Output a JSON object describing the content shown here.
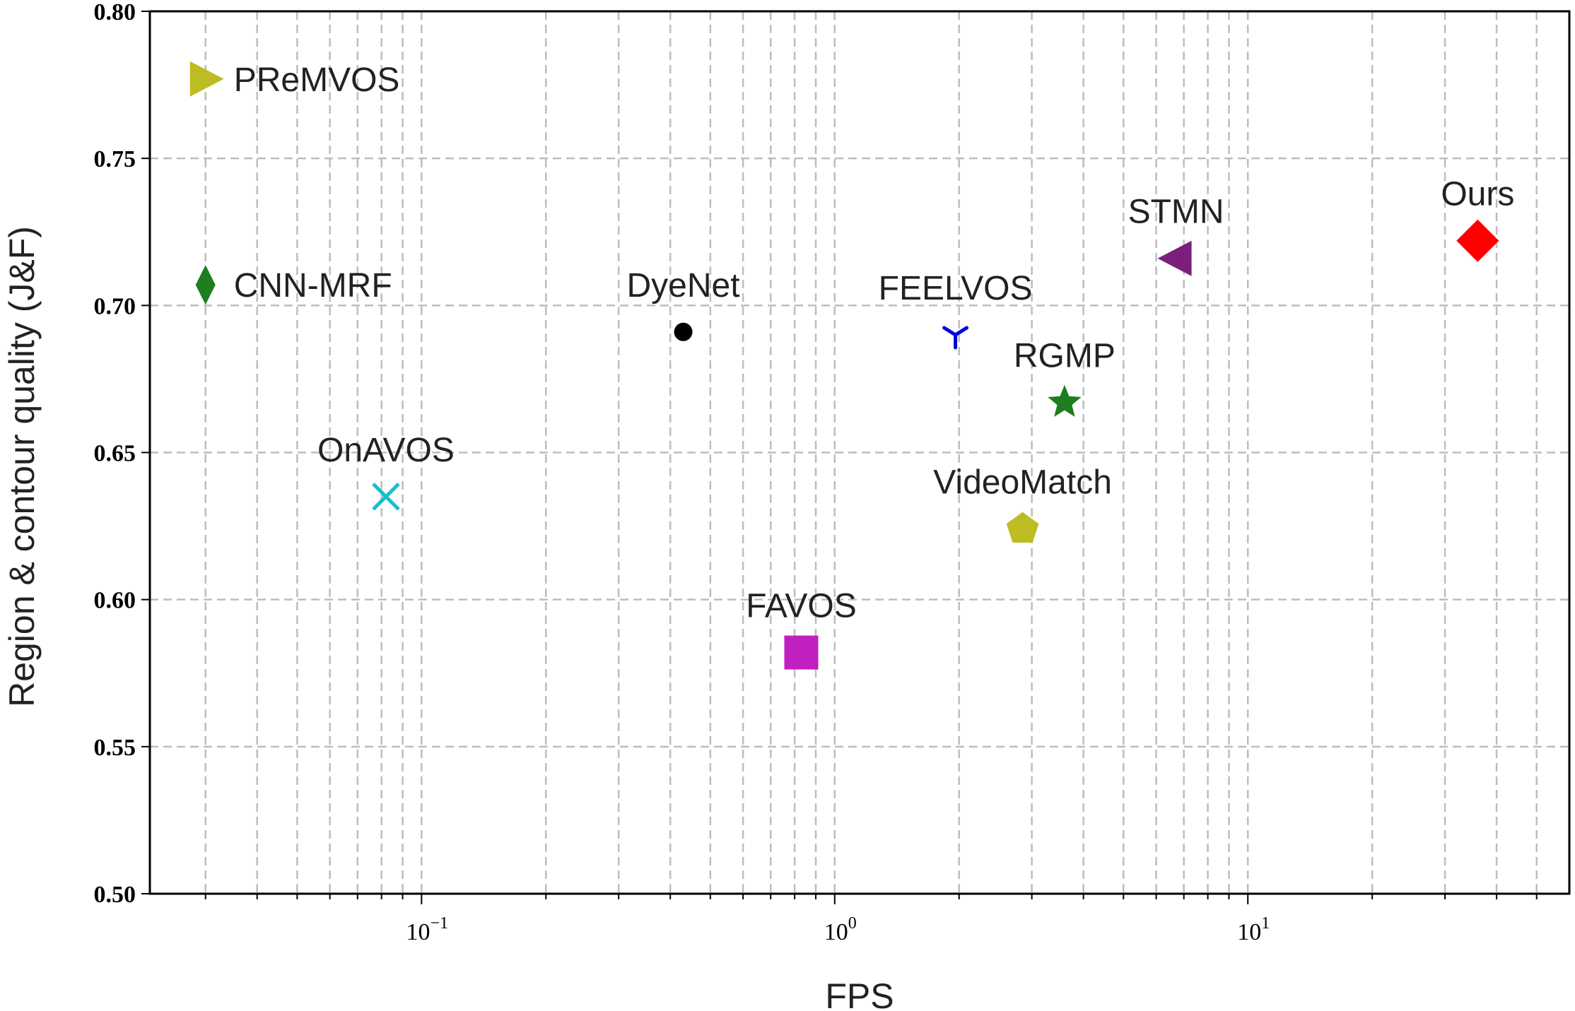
{
  "chart_data": {
    "type": "scatter",
    "title": "",
    "xlabel": "FPS",
    "ylabel": "Region & contour quality (J&F)",
    "xscale": "log",
    "xlim": [
      0.022,
      60
    ],
    "ylim": [
      0.5,
      0.8
    ],
    "grid": true,
    "y_ticks": [
      0.5,
      0.55,
      0.6,
      0.65,
      0.7,
      0.75,
      0.8
    ],
    "y_tick_labels": [
      "0.50",
      "0.55",
      "0.60",
      "0.65",
      "0.70",
      "0.75",
      "0.80"
    ],
    "x_major_ticks": [
      {
        "value": 0.1,
        "base": "10",
        "exp": "−1"
      },
      {
        "value": 1,
        "base": "10",
        "exp": "0"
      },
      {
        "value": 10,
        "base": "10",
        "exp": "1"
      }
    ],
    "x_minor_ticks": [
      0.03,
      0.04,
      0.05,
      0.06,
      0.07,
      0.08,
      0.09,
      0.2,
      0.3,
      0.4,
      0.5,
      0.6,
      0.7,
      0.8,
      0.9,
      2,
      3,
      4,
      5,
      6,
      7,
      8,
      9,
      20,
      30,
      40,
      50
    ],
    "points": [
      {
        "label": "PReMVOS",
        "x": 0.03,
        "y": 0.777,
        "marker": "triangle-right",
        "color": "#bcbd22",
        "label_pos": "right"
      },
      {
        "label": "CNN-MRF",
        "x": 0.03,
        "y": 0.707,
        "marker": "thin-diamond",
        "color": "#1e7d1e",
        "label_pos": "right"
      },
      {
        "label": "OnAVOS",
        "x": 0.082,
        "y": 0.635,
        "marker": "x",
        "color": "#17becf",
        "label_pos": "above"
      },
      {
        "label": "DyeNet",
        "x": 0.43,
        "y": 0.691,
        "marker": "circle",
        "color": "#000000",
        "label_pos": "above"
      },
      {
        "label": "FAVOS",
        "x": 0.83,
        "y": 0.582,
        "marker": "square",
        "color": "#c020c0",
        "label_pos": "above"
      },
      {
        "label": "FEELVOS",
        "x": 1.96,
        "y": 0.69,
        "marker": "tri-down",
        "color": "#0000dd",
        "label_pos": "above"
      },
      {
        "label": "RGMP",
        "x": 3.6,
        "y": 0.667,
        "marker": "star",
        "color": "#1e7d1e",
        "label_pos": "above"
      },
      {
        "label": "VideoMatch",
        "x": 2.85,
        "y": 0.624,
        "marker": "pentagon",
        "color": "#bcbd22",
        "label_pos": "above"
      },
      {
        "label": "STMN",
        "x": 6.7,
        "y": 0.716,
        "marker": "triangle-left",
        "color": "#7b1f7b",
        "label_pos": "above"
      },
      {
        "label": "Ours",
        "x": 36,
        "y": 0.722,
        "marker": "diamond",
        "color": "#ff0000",
        "label_pos": "above"
      }
    ]
  }
}
